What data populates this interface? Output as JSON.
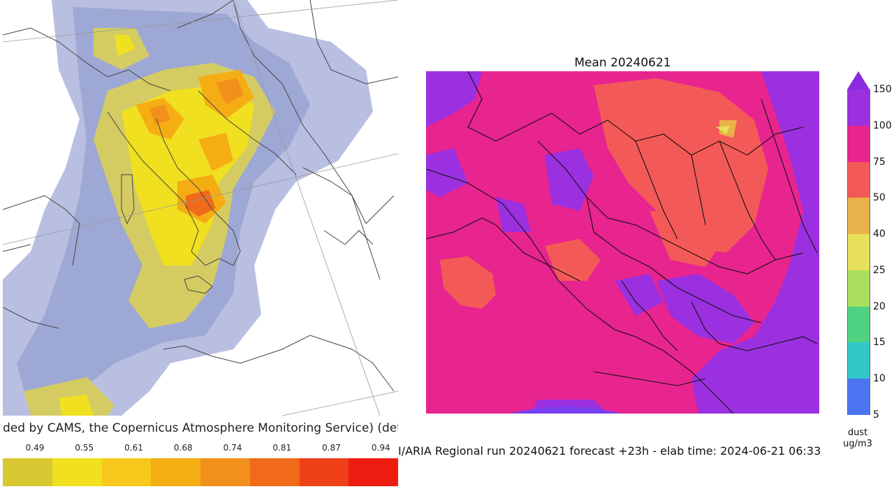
{
  "left_panel": {
    "caption": "ded by CAMS, the Copernicus Atmosphere Monitoring Service) (det",
    "scale_ticks": [
      "0.49",
      "0.55",
      "0.61",
      "0.68",
      "0.74",
      "0.81",
      "0.87",
      "0.94"
    ],
    "scale_colors": [
      "#d8c832",
      "#f0e020",
      "#f7c81c",
      "#f5ad14",
      "#f2901c",
      "#f06a1a",
      "#f04018",
      "#ee1c10"
    ]
  },
  "right_panel": {
    "title": "Mean 20240621",
    "caption": "I/ARIA Regional run 20240621 forecast +23h - elab time: 2024-06-21 06:33",
    "colorbar": {
      "labels": [
        "150",
        "100",
        "75",
        "50",
        "40",
        "25",
        "20",
        "15",
        "10",
        "5"
      ],
      "colors": [
        "#9b30e0",
        "#e8248f",
        "#f35a57",
        "#e9b14a",
        "#e6e05a",
        "#a9df5c",
        "#4fd282",
        "#32c8c8",
        "#4b74f0"
      ],
      "unit_line1": "dust",
      "unit_line2": "ug/m3"
    }
  }
}
